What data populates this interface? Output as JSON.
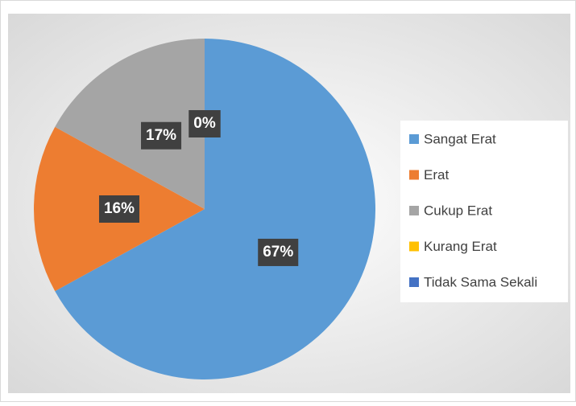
{
  "chart_data": {
    "type": "pie",
    "categories": [
      "Sangat Erat",
      "Erat",
      "Cukup Erat",
      "Kurang Erat",
      "Tidak Sama Sekali"
    ],
    "values": [
      67,
      16,
      17,
      0,
      0
    ],
    "value_labels": [
      "67%",
      "16%",
      "17%",
      "0%",
      null
    ],
    "colors": [
      "#5b9bd5",
      "#ed7d31",
      "#a5a5a5",
      "#ffc000",
      "#4472c4"
    ],
    "legend": "right"
  }
}
